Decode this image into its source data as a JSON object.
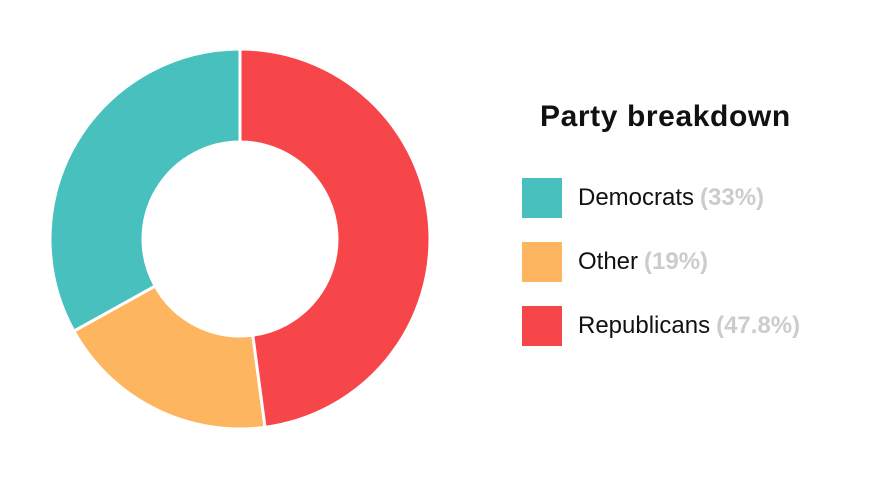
{
  "chart_data": {
    "type": "pie",
    "variant": "donut",
    "title": "Party breakdown",
    "legend_position": "right",
    "slices": [
      {
        "name": "Democrats",
        "percent_label": "(33%)",
        "value": 33,
        "color": "#48c0bd"
      },
      {
        "name": "Other",
        "percent_label": "(19%)",
        "value": 19,
        "color": "#fdb55f"
      },
      {
        "name": "Republicans",
        "percent_label": "(47.8%)",
        "value": 47.8,
        "color": "#f7464a"
      }
    ]
  }
}
